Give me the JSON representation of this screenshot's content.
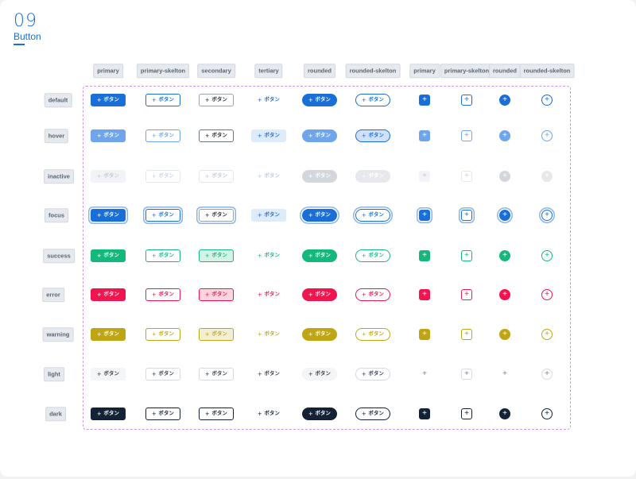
{
  "section": {
    "number": "09",
    "title": "Button"
  },
  "columns": [
    "primary",
    "primary-skelton",
    "secondary",
    "tertiary",
    "rounded",
    "rounded-skelton",
    "primary",
    "primary-skelton",
    "rounded",
    "rounded-skelton"
  ],
  "rows": [
    "default",
    "hover",
    "inactive",
    "focus",
    "success",
    "error",
    "warning",
    "light",
    "dark"
  ],
  "button_text": "ボタン",
  "plus_glyph": "+",
  "colors": {
    "accent": "#1a6ed8",
    "hover": "#6fa5ea",
    "success": "#14b77c",
    "error": "#f0154e",
    "warning": "#bfa514",
    "dark": "#142236",
    "light_text": "#333d4a",
    "frame_border": "#d292e8"
  }
}
